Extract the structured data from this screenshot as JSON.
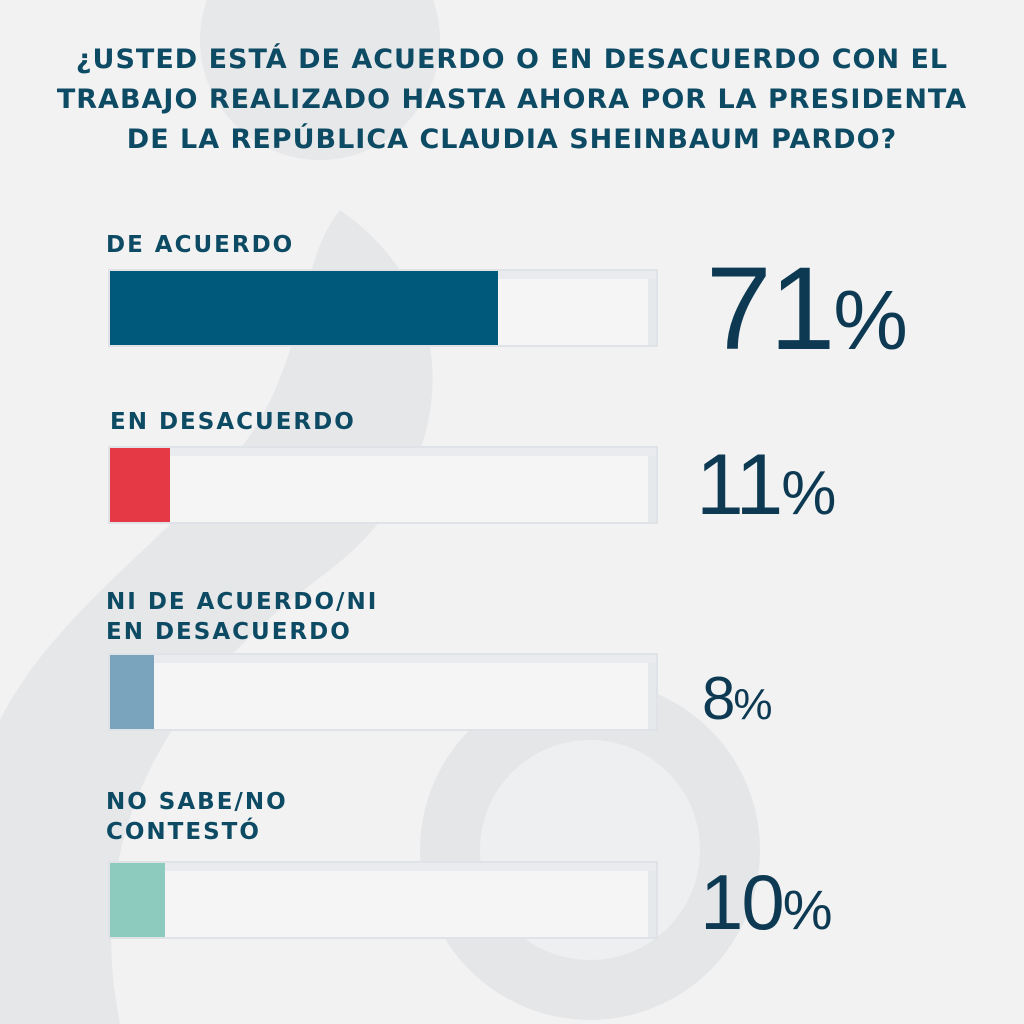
{
  "question_lines": [
    "¿USTED ESTÁ DE ACUERDO O EN DESACUERDO CON EL",
    "TRABAJO REALIZADO HASTA AHORA POR LA PRESIDENTA",
    "DE LA REPÚBLICA CLAUDIA SHEINBAUM PARDO?"
  ],
  "chart_data": {
    "type": "bar",
    "orientation": "horizontal",
    "title": "¿USTED ESTÁ DE ACUERDO O EN DESACUERDO CON EL TRABAJO REALIZADO HASTA AHORA POR LA PRESIDENTA DE LA REPÚBLICA CLAUDIA SHEINBAUM PARDO?",
    "categories": [
      {
        "lines": [
          "DE ACUERDO"
        ],
        "label": "DE ACUERDO",
        "value": 71,
        "display": "71",
        "unit": "%",
        "color": "#00587b"
      },
      {
        "lines": [
          "EN DESACUERDO"
        ],
        "label": "EN DESACUERDO",
        "value": 11,
        "display": "11",
        "unit": "%",
        "color": "#e63946"
      },
      {
        "lines": [
          "NI DE ACUERDO/NI",
          "EN DESACUERDO"
        ],
        "label": "NI DE ACUERDO/NI EN DESACUERDO",
        "value": 8,
        "display": "8",
        "unit": "%",
        "color": "#7aa3be"
      },
      {
        "lines": [
          "NO SABE/NO",
          "CONTESTÓ"
        ],
        "label": "NO SABE/NO CONTESTÓ",
        "value": 10,
        "display": "10",
        "unit": "%",
        "color": "#8ccbbe"
      }
    ],
    "xlim": [
      0,
      100
    ]
  }
}
